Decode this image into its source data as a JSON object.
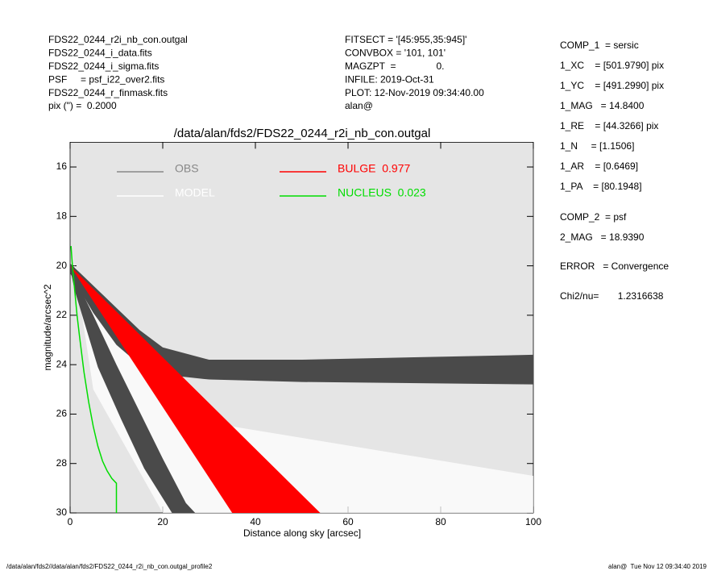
{
  "header": {
    "left": [
      "FDS22_0244_r2i_nb_con.outgal",
      "FDS22_0244_i_data.fits",
      "FDS22_0244_i_sigma.fits",
      "PSF     = psf_i22_over2.fits",
      "FDS22_0244_r_finmask.fits",
      "pix (\") =  0.2000"
    ],
    "middle": [
      "FITSECT = '[45:955,35:945]'",
      "CONVBOX = '101, 101'",
      "MAGZPT  =               0.",
      "INFILE: 2019-Oct-31",
      "PLOT: 12-Nov-2019 09:34:40.00",
      "alan@"
    ],
    "right": [
      "COMP_1  = sersic",
      "1_XC    = [501.9790] pix",
      "1_YC    = [491.2990] pix",
      "1_MAG   = 14.8400",
      "1_RE    = [44.3266] pix",
      "1_N     = [1.1506]",
      "1_AR    = [0.6469]",
      "1_PA    = [80.1948]",
      "COMP_2  = psf",
      "2_MAG   = 18.9390",
      "ERROR   = Convergence",
      "Chi2/nu=       1.2316638"
    ]
  },
  "footer": {
    "left": "/data/alan/fds2//data/alan/fds2/FDS22_0244_r2i_nb_con.outgal_profile2",
    "right": "alan@  Tue Nov 12 09:34:40 2019"
  },
  "chart_data": {
    "type": "profile",
    "title": "/data/alan/fds2/FDS22_0244_r2i_nb_con.outgal",
    "xlabel": "Distance along sky [arcsec]",
    "ylabel": "magnitude/arcsec^2",
    "xlim": [
      0,
      100
    ],
    "ylim": [
      15,
      30
    ],
    "y_inverted": true,
    "xticks": [
      0,
      20,
      40,
      60,
      80,
      100
    ],
    "yticks": [
      16,
      18,
      20,
      22,
      24,
      26,
      28,
      30
    ],
    "series": [
      {
        "name": "MODEL",
        "color": "#ffffff",
        "legend_color": "#ffffff",
        "x": [
          0,
          1,
          15,
          35,
          100,
          100,
          20,
          5
        ],
        "values": [
          18.8,
          20,
          24,
          26.5,
          28.5,
          30,
          30,
          25
        ]
      },
      {
        "name": "OBS",
        "color": "#4a4a4a",
        "legend_color": "#888888",
        "x": [
          0,
          5,
          10,
          15,
          20,
          30,
          50,
          100,
          100,
          50,
          30,
          20,
          15,
          10,
          5,
          0,
          null,
          0,
          5,
          10,
          15,
          20,
          25,
          27,
          22,
          16,
          11,
          6,
          1
        ],
        "values": [
          19.9,
          20.8,
          21.7,
          22.6,
          23.3,
          23.8,
          23.8,
          23.6,
          24.8,
          24.7,
          24.6,
          24.4,
          24.0,
          23.2,
          21.9,
          20.3,
          null,
          20.1,
          22.0,
          24.0,
          25.9,
          27.8,
          29.6,
          30,
          30,
          28.2,
          26.2,
          24.1,
          21.0
        ]
      },
      {
        "name": "BULGE  0.977",
        "color": "#ff0000",
        "legend_color": "#ff0000",
        "x": [
          0,
          35,
          54
        ],
        "values": [
          20,
          30,
          30
        ]
      },
      {
        "name": "NUCLEUS  0.023",
        "color": "#00dd00",
        "legend_color": "#00dd00",
        "line": true,
        "x": [
          0.2,
          0.5,
          1,
          1.5,
          2,
          3,
          4,
          5,
          6,
          7,
          8,
          9,
          10,
          10
        ],
        "values": [
          19.2,
          20,
          21,
          22,
          22.8,
          24.3,
          25.5,
          26.5,
          27.3,
          27.9,
          28.3,
          28.6,
          28.8,
          30
        ]
      }
    ]
  }
}
